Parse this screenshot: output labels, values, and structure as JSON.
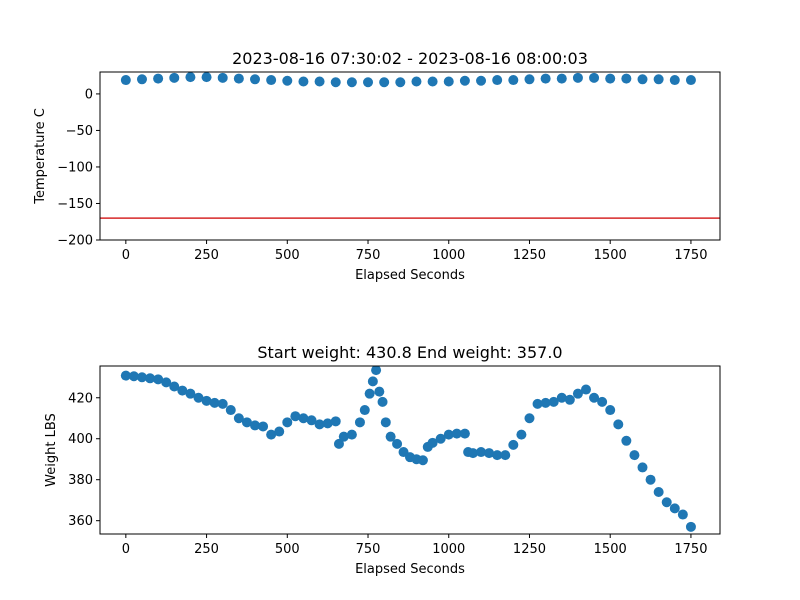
{
  "chart_data": [
    {
      "type": "scatter",
      "title": "2023-08-16 07:30:02 - 2023-08-16 08:00:03",
      "xlabel": "Elapsed Seconds",
      "ylabel": "Temperature C",
      "xlim": [
        -80,
        1840
      ],
      "ylim": [
        -200,
        30
      ],
      "xticks": [
        0,
        250,
        500,
        750,
        1000,
        1250,
        1500,
        1750
      ],
      "yticks": [
        0,
        -50,
        -100,
        -150,
        -200
      ],
      "grid": false,
      "marker_color": "#1f77b4",
      "reference_line": {
        "y": -170,
        "color": "#d62728"
      },
      "x": [
        0,
        50,
        100,
        150,
        200,
        250,
        300,
        350,
        400,
        450,
        500,
        550,
        600,
        650,
        700,
        750,
        800,
        850,
        900,
        950,
        1000,
        1050,
        1100,
        1150,
        1200,
        1250,
        1300,
        1350,
        1400,
        1450,
        1500,
        1550,
        1600,
        1650,
        1700,
        1750
      ],
      "y": [
        19,
        20,
        21,
        22,
        23,
        23,
        22,
        21,
        20,
        19,
        18,
        17,
        17,
        16,
        16,
        16,
        16,
        16,
        17,
        17,
        17,
        18,
        18,
        19,
        19,
        20,
        21,
        21,
        22,
        22,
        21,
        21,
        20,
        20,
        19,
        19
      ]
    },
    {
      "type": "scatter",
      "title": "Start weight: 430.8 End weight: 357.0",
      "xlabel": "Elapsed Seconds",
      "ylabel": "Weight LBS",
      "xlim": [
        -80,
        1840
      ],
      "ylim": [
        353.5,
        435.5
      ],
      "xticks": [
        0,
        250,
        500,
        750,
        1000,
        1250,
        1500,
        1750
      ],
      "yticks": [
        420,
        400,
        380,
        360
      ],
      "grid": false,
      "marker_color": "#1f77b4",
      "x": [
        0,
        25,
        50,
        75,
        100,
        125,
        150,
        175,
        200,
        225,
        250,
        275,
        300,
        325,
        350,
        375,
        400,
        425,
        450,
        475,
        500,
        525,
        550,
        575,
        600,
        625,
        650,
        660,
        675,
        700,
        725,
        740,
        755,
        765,
        775,
        785,
        795,
        805,
        820,
        840,
        860,
        880,
        900,
        920,
        935,
        950,
        975,
        1000,
        1025,
        1050,
        1060,
        1075,
        1100,
        1125,
        1150,
        1175,
        1200,
        1225,
        1250,
        1275,
        1300,
        1325,
        1350,
        1375,
        1400,
        1425,
        1450,
        1475,
        1500,
        1525,
        1550,
        1575,
        1600,
        1625,
        1650,
        1675,
        1700,
        1725,
        1750
      ],
      "y": [
        430.8,
        430.5,
        430,
        429.5,
        429,
        427.5,
        425.5,
        423.5,
        422,
        420,
        418.5,
        417.5,
        417,
        414,
        410,
        408,
        406.5,
        406,
        402,
        403.5,
        408,
        411,
        410,
        409,
        407,
        407.5,
        408.5,
        397.5,
        401,
        402,
        408,
        414,
        422,
        428,
        433.5,
        423,
        418,
        408,
        401,
        397.5,
        393.5,
        391,
        390,
        389.5,
        396,
        398,
        400,
        402,
        402.5,
        402.5,
        393.5,
        393,
        393.5,
        393,
        392,
        392,
        397,
        402,
        410,
        417,
        417.5,
        418,
        420,
        419,
        422,
        424,
        420,
        418,
        414,
        407,
        399,
        392,
        386,
        380,
        374,
        369,
        366,
        363,
        357
      ]
    }
  ]
}
